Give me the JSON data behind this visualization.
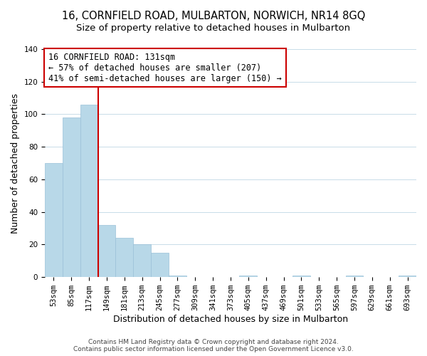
{
  "title": "16, CORNFIELD ROAD, MULBARTON, NORWICH, NR14 8GQ",
  "subtitle": "Size of property relative to detached houses in Mulbarton",
  "xlabel": "Distribution of detached houses by size in Mulbarton",
  "ylabel": "Number of detached properties",
  "bar_labels": [
    "53sqm",
    "85sqm",
    "117sqm",
    "149sqm",
    "181sqm",
    "213sqm",
    "245sqm",
    "277sqm",
    "309sqm",
    "341sqm",
    "373sqm",
    "405sqm",
    "437sqm",
    "469sqm",
    "501sqm",
    "533sqm",
    "565sqm",
    "597sqm",
    "629sqm",
    "661sqm",
    "693sqm"
  ],
  "bar_heights": [
    70,
    98,
    106,
    32,
    24,
    20,
    15,
    1,
    0,
    0,
    0,
    1,
    0,
    0,
    1,
    0,
    0,
    1,
    0,
    0,
    1
  ],
  "bar_color": "#b8d8e8",
  "bar_edge_color": "#9ac0d8",
  "vline_x": 2.5,
  "vline_color": "#cc0000",
  "annotation_text": "16 CORNFIELD ROAD: 131sqm\n← 57% of detached houses are smaller (207)\n41% of semi-detached houses are larger (150) →",
  "annotation_box_color": "#ffffff",
  "annotation_box_edge": "#cc0000",
  "ylim": [
    0,
    140
  ],
  "yticks": [
    0,
    20,
    40,
    60,
    80,
    100,
    120,
    140
  ],
  "footer_line1": "Contains HM Land Registry data © Crown copyright and database right 2024.",
  "footer_line2": "Contains public sector information licensed under the Open Government Licence v3.0.",
  "bg_color": "#ffffff",
  "grid_color": "#c8dce8",
  "title_fontsize": 10.5,
  "subtitle_fontsize": 9.5,
  "axis_label_fontsize": 9,
  "tick_fontsize": 7.5,
  "annotation_fontsize": 8.5,
  "footer_fontsize": 6.5
}
